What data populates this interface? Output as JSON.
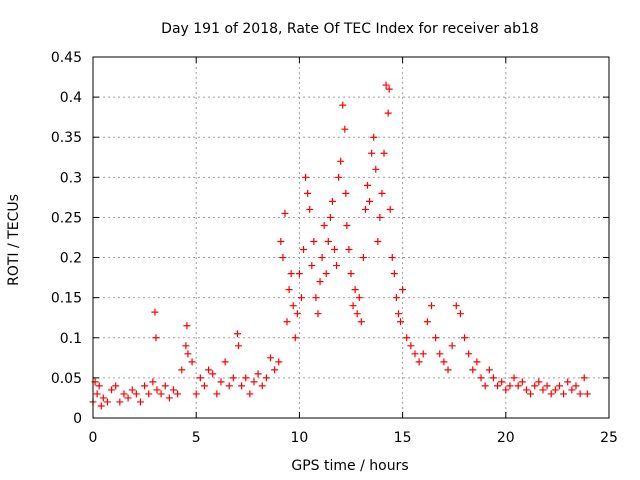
{
  "chart_data": {
    "type": "scatter",
    "title": "Day 191 of 2018, Rate Of TEC Index for receiver ab18",
    "xlabel": "GPS time / hours",
    "ylabel": "ROTI / TECUs",
    "xlim": [
      0,
      25
    ],
    "ylim": [
      0,
      0.45
    ],
    "xticks": [
      0,
      5,
      10,
      15,
      20,
      25
    ],
    "xtick_labels": [
      "0",
      "5",
      "10",
      "15",
      "20",
      "25"
    ],
    "yticks": [
      0,
      0.05,
      0.1,
      0.15,
      0.2,
      0.25,
      0.3,
      0.35,
      0.4,
      0.45
    ],
    "ytick_labels": [
      "0",
      "0.05",
      "0.1",
      "0.15",
      "0.2",
      "0.25",
      "0.3",
      "0.35",
      "0.4",
      "0.45"
    ],
    "grid": true,
    "marker": "+",
    "color": "#ff0000",
    "series": [
      {
        "name": "ROTI",
        "x": [
          0.0,
          0.1,
          0.2,
          0.3,
          0.4,
          0.5,
          0.7,
          0.9,
          1.1,
          1.3,
          1.5,
          1.7,
          1.9,
          2.1,
          2.3,
          2.5,
          2.7,
          2.9,
          3.0,
          3.05,
          3.1,
          3.3,
          3.5,
          3.7,
          3.9,
          4.1,
          4.3,
          4.5,
          4.55,
          4.6,
          4.8,
          5.0,
          5.2,
          5.4,
          5.6,
          5.8,
          6.0,
          6.2,
          6.4,
          6.6,
          6.8,
          7.0,
          7.05,
          7.2,
          7.4,
          7.6,
          7.8,
          8.0,
          8.2,
          8.4,
          8.6,
          8.8,
          9.0,
          9.1,
          9.2,
          9.3,
          9.4,
          9.5,
          9.6,
          9.7,
          9.8,
          9.9,
          10.0,
          10.1,
          10.2,
          10.3,
          10.4,
          10.5,
          10.6,
          10.7,
          10.8,
          10.9,
          11.0,
          11.1,
          11.2,
          11.3,
          11.4,
          11.5,
          11.6,
          11.7,
          11.8,
          11.9,
          12.0,
          12.1,
          12.2,
          12.25,
          12.3,
          12.4,
          12.5,
          12.6,
          12.7,
          12.8,
          12.9,
          13.0,
          13.1,
          13.2,
          13.3,
          13.4,
          13.5,
          13.6,
          13.7,
          13.8,
          13.9,
          14.0,
          14.1,
          14.2,
          14.3,
          14.35,
          14.4,
          14.5,
          14.6,
          14.7,
          14.8,
          14.9,
          15.0,
          15.2,
          15.4,
          15.6,
          15.8,
          16.0,
          16.2,
          16.4,
          16.6,
          16.8,
          17.0,
          17.2,
          17.4,
          17.6,
          17.8,
          18.0,
          18.2,
          18.4,
          18.6,
          18.8,
          19.0,
          19.2,
          19.4,
          19.6,
          19.8,
          20.0,
          20.2,
          20.4,
          20.6,
          20.8,
          21.0,
          21.2,
          21.4,
          21.6,
          21.8,
          22.0,
          22.2,
          22.4,
          22.6,
          22.8,
          23.0,
          23.2,
          23.4,
          23.6,
          23.8,
          23.95
        ],
        "y": [
          0.02,
          0.045,
          0.03,
          0.04,
          0.015,
          0.025,
          0.02,
          0.035,
          0.04,
          0.02,
          0.03,
          0.025,
          0.035,
          0.03,
          0.02,
          0.04,
          0.03,
          0.045,
          0.132,
          0.1,
          0.035,
          0.03,
          0.04,
          0.025,
          0.035,
          0.03,
          0.06,
          0.09,
          0.115,
          0.08,
          0.07,
          0.03,
          0.05,
          0.04,
          0.06,
          0.055,
          0.03,
          0.045,
          0.07,
          0.04,
          0.05,
          0.105,
          0.09,
          0.04,
          0.05,
          0.03,
          0.045,
          0.055,
          0.04,
          0.05,
          0.075,
          0.06,
          0.07,
          0.22,
          0.2,
          0.255,
          0.12,
          0.16,
          0.18,
          0.14,
          0.1,
          0.13,
          0.18,
          0.15,
          0.21,
          0.3,
          0.28,
          0.26,
          0.19,
          0.22,
          0.15,
          0.13,
          0.17,
          0.2,
          0.24,
          0.18,
          0.22,
          0.25,
          0.27,
          0.21,
          0.19,
          0.3,
          0.32,
          0.39,
          0.36,
          0.28,
          0.24,
          0.21,
          0.18,
          0.14,
          0.16,
          0.13,
          0.15,
          0.12,
          0.2,
          0.26,
          0.29,
          0.27,
          0.33,
          0.35,
          0.31,
          0.22,
          0.25,
          0.28,
          0.33,
          0.415,
          0.38,
          0.41,
          0.26,
          0.2,
          0.18,
          0.15,
          0.13,
          0.12,
          0.16,
          0.1,
          0.09,
          0.08,
          0.07,
          0.08,
          0.12,
          0.14,
          0.1,
          0.08,
          0.07,
          0.06,
          0.09,
          0.14,
          0.13,
          0.1,
          0.08,
          0.06,
          0.07,
          0.05,
          0.04,
          0.06,
          0.05,
          0.04,
          0.045,
          0.035,
          0.04,
          0.05,
          0.04,
          0.045,
          0.035,
          0.03,
          0.04,
          0.045,
          0.035,
          0.04,
          0.03,
          0.035,
          0.04,
          0.03,
          0.045,
          0.035,
          0.04,
          0.03,
          0.05,
          0.03
        ]
      }
    ]
  }
}
